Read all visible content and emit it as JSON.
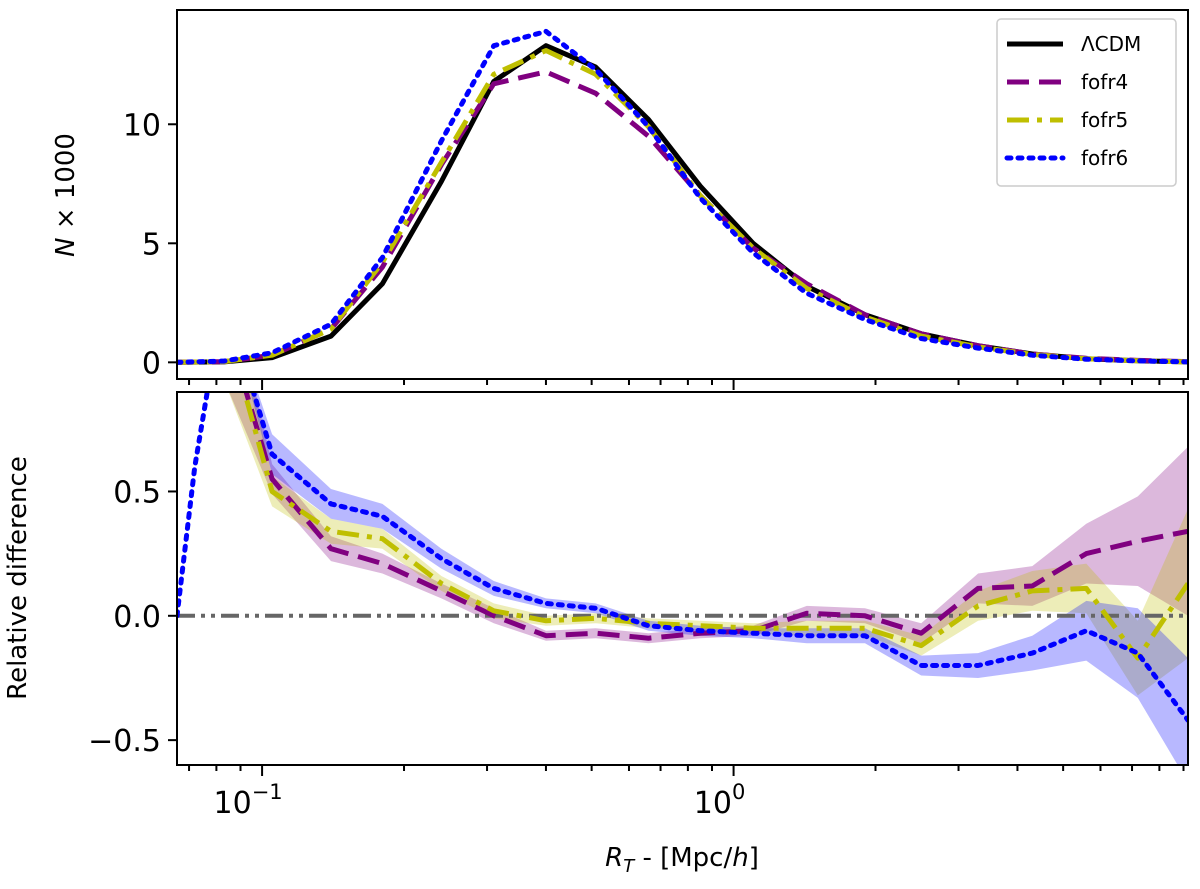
{
  "chart_data": [
    {
      "panel": "top",
      "type": "line",
      "xscale": "log",
      "xlim": [
        0.066,
        9.2
      ],
      "ylim": [
        -0.7,
        14.8
      ],
      "ylabel": "N × 1000",
      "yticks": [
        0,
        5,
        10
      ],
      "legend_position": "upper-right",
      "series": [
        {
          "name": "ΛCDM",
          "color": "#000000",
          "style": "solid",
          "x": [
            0.066,
            0.083,
            0.105,
            0.14,
            0.18,
            0.24,
            0.31,
            0.4,
            0.51,
            0.66,
            0.85,
            1.1,
            1.43,
            1.9,
            2.5,
            3.3,
            4.3,
            5.6,
            7.2,
            9.2
          ],
          "y": [
            0.0,
            0.02,
            0.2,
            1.1,
            3.3,
            7.6,
            11.8,
            13.3,
            12.4,
            10.2,
            7.4,
            5.0,
            3.2,
            2.0,
            1.2,
            0.7,
            0.35,
            0.15,
            0.07,
            0.02
          ]
        },
        {
          "name": "fofr4",
          "color": "#800080",
          "style": "dashed",
          "x": [
            0.066,
            0.083,
            0.105,
            0.14,
            0.18,
            0.24,
            0.31,
            0.4,
            0.51,
            0.66,
            0.85,
            1.1,
            1.43,
            1.9,
            2.5,
            3.3,
            4.3,
            5.6,
            7.2,
            9.2
          ],
          "y": [
            0.0,
            0.03,
            0.3,
            1.4,
            4.0,
            8.3,
            11.7,
            12.2,
            11.3,
            9.5,
            7.0,
            4.8,
            3.3,
            2.0,
            1.2,
            0.7,
            0.35,
            0.17,
            0.08,
            0.03
          ]
        },
        {
          "name": "fofr5",
          "color": "#bfbf00",
          "style": "dashdot",
          "x": [
            0.066,
            0.083,
            0.105,
            0.14,
            0.18,
            0.24,
            0.31,
            0.4,
            0.51,
            0.66,
            0.85,
            1.1,
            1.43,
            1.9,
            2.5,
            3.3,
            4.3,
            5.6,
            7.2,
            9.2
          ],
          "y": [
            0.0,
            0.03,
            0.3,
            1.4,
            4.2,
            8.4,
            12.1,
            13.1,
            12.1,
            9.9,
            7.0,
            4.8,
            3.1,
            1.9,
            1.1,
            0.65,
            0.33,
            0.15,
            0.07,
            0.02
          ]
        },
        {
          "name": "fofr6",
          "color": "#0000ff",
          "style": "dotted",
          "x": [
            0.066,
            0.083,
            0.105,
            0.14,
            0.18,
            0.24,
            0.31,
            0.4,
            0.51,
            0.66,
            0.85,
            1.1,
            1.43,
            1.9,
            2.5,
            3.3,
            4.3,
            5.6,
            7.2,
            9.2
          ],
          "y": [
            0.0,
            0.05,
            0.4,
            1.6,
            4.4,
            9.3,
            13.3,
            13.9,
            12.3,
            9.9,
            6.9,
            4.6,
            2.9,
            1.8,
            1.0,
            0.6,
            0.3,
            0.13,
            0.06,
            0.02
          ]
        }
      ]
    },
    {
      "panel": "bottom",
      "type": "line",
      "xscale": "log",
      "xlim": [
        0.066,
        9.2
      ],
      "ylim": [
        -0.6,
        0.9
      ],
      "ylabel": "Relative difference",
      "xlabel": "R_T - [Mpc/h]",
      "yticks": [
        -0.5,
        0.0,
        0.5
      ],
      "xticks": [
        0.1,
        1.0
      ],
      "xtick_labels": [
        "10^−1",
        "10^0"
      ],
      "reference_line": {
        "y": 0.0,
        "color": "#666666",
        "style": "dashdotdot"
      },
      "series": [
        {
          "name": "fofr4",
          "color": "#800080",
          "style": "dashed",
          "x": [
            0.083,
            0.105,
            0.14,
            0.18,
            0.24,
            0.31,
            0.4,
            0.51,
            0.66,
            0.85,
            1.1,
            1.43,
            1.9,
            2.5,
            3.3,
            4.3,
            5.6,
            7.2,
            9.2
          ],
          "y": [
            1.2,
            0.55,
            0.27,
            0.21,
            0.1,
            0.0,
            -0.08,
            -0.07,
            -0.09,
            -0.07,
            -0.06,
            0.01,
            0.0,
            -0.07,
            0.11,
            0.12,
            0.25,
            0.3,
            0.34
          ],
          "band": [
            0.25,
            0.06,
            0.05,
            0.04,
            0.03,
            0.03,
            0.02,
            0.02,
            0.02,
            0.02,
            0.02,
            0.03,
            0.03,
            0.04,
            0.06,
            0.08,
            0.12,
            0.18,
            0.34
          ]
        },
        {
          "name": "fofr5",
          "color": "#bfbf00",
          "style": "dashdot",
          "x": [
            0.083,
            0.105,
            0.14,
            0.18,
            0.24,
            0.31,
            0.4,
            0.51,
            0.66,
            0.85,
            1.1,
            1.43,
            1.9,
            2.5,
            3.3,
            4.3,
            5.6,
            7.2,
            9.2
          ],
          "y": [
            1.2,
            0.5,
            0.34,
            0.31,
            0.13,
            0.02,
            -0.02,
            -0.01,
            -0.03,
            -0.04,
            -0.05,
            -0.05,
            -0.05,
            -0.12,
            0.04,
            0.1,
            0.11,
            -0.17,
            0.13
          ],
          "band": [
            0.25,
            0.06,
            0.05,
            0.04,
            0.03,
            0.03,
            0.02,
            0.02,
            0.02,
            0.02,
            0.02,
            0.03,
            0.03,
            0.04,
            0.06,
            0.08,
            0.1,
            0.15,
            0.3
          ]
        },
        {
          "name": "fofr6",
          "color": "#0000ff",
          "style": "dotted",
          "x": [
            0.066,
            0.072,
            0.083,
            0.105,
            0.14,
            0.18,
            0.24,
            0.31,
            0.4,
            0.51,
            0.66,
            0.85,
            1.1,
            1.43,
            1.9,
            2.5,
            3.3,
            4.3,
            5.6,
            7.2,
            9.2
          ],
          "y": [
            0.0,
            0.6,
            1.3,
            0.65,
            0.45,
            0.4,
            0.23,
            0.11,
            0.05,
            0.03,
            -0.04,
            -0.06,
            -0.07,
            -0.08,
            -0.08,
            -0.2,
            -0.2,
            -0.15,
            -0.06,
            -0.15,
            -0.42
          ],
          "band": [
            0.0,
            0.0,
            0.0,
            0.08,
            0.06,
            0.05,
            0.04,
            0.03,
            0.02,
            0.02,
            0.02,
            0.02,
            0.02,
            0.03,
            0.03,
            0.04,
            0.05,
            0.07,
            0.12,
            0.18,
            0.25
          ]
        }
      ]
    }
  ],
  "legend": {
    "entries": [
      {
        "label": "ΛCDM",
        "color": "#000000",
        "style": "solid"
      },
      {
        "label": "fofr4",
        "color": "#800080",
        "style": "dashed"
      },
      {
        "label": "fofr5",
        "color": "#bfbf00",
        "style": "dashdot"
      },
      {
        "label": "fofr6",
        "color": "#0000ff",
        "style": "dotted"
      }
    ]
  },
  "axes_text": {
    "top_ylabel_math": "N",
    "top_ylabel_rest": " × 1000",
    "bottom_ylabel": "Relative difference",
    "xlabel_math": "R",
    "xlabel_sub": "T",
    "xlabel_rest": " - [Mpc/",
    "xlabel_h": "h",
    "xlabel_close": "]"
  }
}
